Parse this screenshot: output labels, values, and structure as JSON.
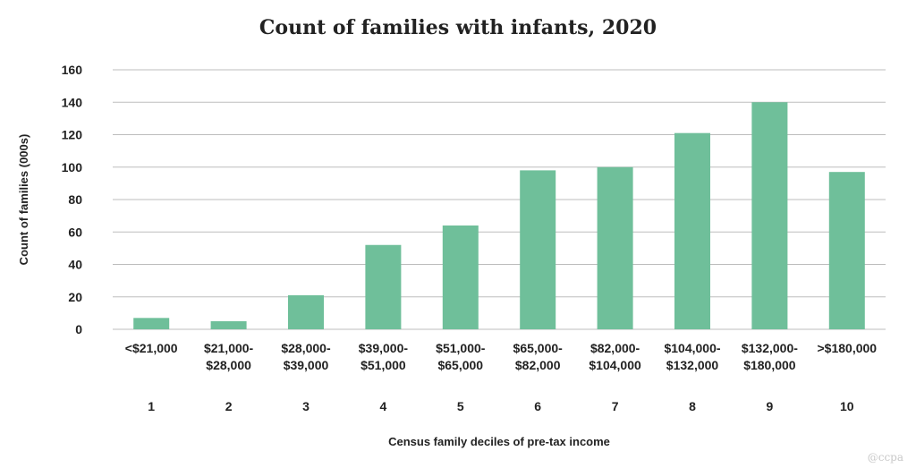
{
  "chart_data": {
    "type": "bar",
    "title": "Count of families with infants, 2020",
    "xlabel": "Census family deciles of pre-tax income",
    "ylabel": "Count of families (000s)",
    "ylim": [
      0,
      160
    ],
    "yticks": [
      "0",
      "20",
      "40",
      "60",
      "80",
      "100",
      "120",
      "140",
      "160"
    ],
    "grid": true,
    "categories": [
      {
        "range": [
          "<$21,000"
        ],
        "decile": "1"
      },
      {
        "range": [
          "$21,000-",
          "$28,000"
        ],
        "decile": "2"
      },
      {
        "range": [
          "$28,000-",
          "$39,000"
        ],
        "decile": "3"
      },
      {
        "range": [
          "$39,000-",
          "$51,000"
        ],
        "decile": "4"
      },
      {
        "range": [
          "$51,000-",
          "$65,000"
        ],
        "decile": "5"
      },
      {
        "range": [
          "$65,000-",
          "$82,000"
        ],
        "decile": "6"
      },
      {
        "range": [
          "$82,000-",
          "$104,000"
        ],
        "decile": "7"
      },
      {
        "range": [
          "$104,000-",
          "$132,000"
        ],
        "decile": "8"
      },
      {
        "range": [
          "$132,000-",
          "$180,000"
        ],
        "decile": "9"
      },
      {
        "range": [
          ">$180,000"
        ],
        "decile": "10"
      }
    ],
    "values": [
      7,
      5,
      21,
      52,
      64,
      98,
      100,
      121,
      140,
      97
    ],
    "bar_color": "#6fbf9a",
    "watermark": "@ccpa"
  }
}
